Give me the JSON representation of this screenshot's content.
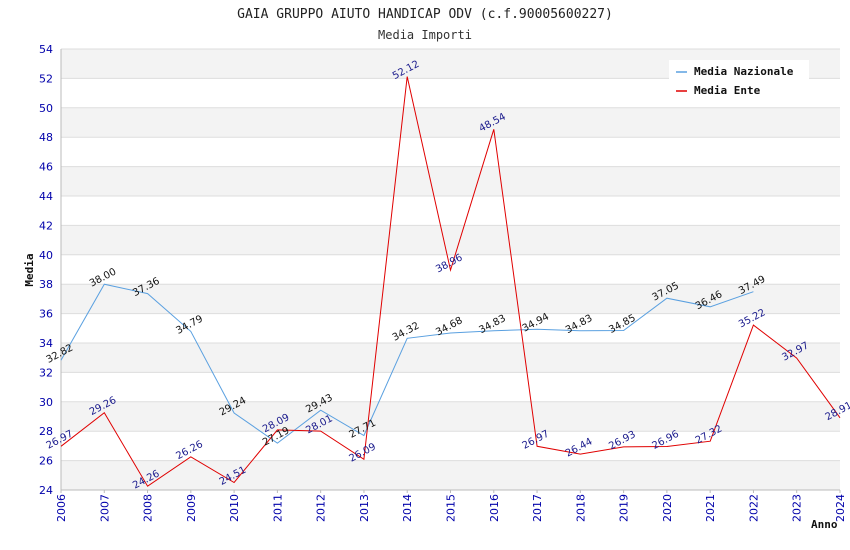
{
  "chart_data": {
    "type": "line",
    "title": "GAIA GRUPPO AIUTO HANDICAP ODV (c.f.90005600227)",
    "subtitle": "Media Importi",
    "xlabel": "Anno",
    "ylabel": "Media",
    "ylim": [
      24,
      54
    ],
    "yticks": [
      24,
      26,
      28,
      30,
      32,
      34,
      36,
      38,
      40,
      42,
      44,
      46,
      48,
      50,
      52,
      54
    ],
    "categories": [
      "2006",
      "2007",
      "2008",
      "2009",
      "2010",
      "2011",
      "2012",
      "2013",
      "2014",
      "2015",
      "2016",
      "2017",
      "2018",
      "2019",
      "2020",
      "2021",
      "2022",
      "2023",
      "2024"
    ],
    "grid": true,
    "legend_position": "top-right",
    "series": [
      {
        "name": "Media Nazionale",
        "color": "#5aa0e0",
        "values": [
          32.82,
          38.0,
          37.36,
          34.79,
          29.24,
          27.19,
          29.43,
          27.71,
          34.32,
          34.68,
          34.83,
          34.94,
          34.83,
          34.85,
          37.05,
          36.46,
          37.49,
          null,
          null
        ],
        "labels": [
          "32.82",
          "38.00",
          "37.36",
          "34.79",
          "29.24",
          "27.19",
          "29.43",
          "27.71",
          "34.32",
          "34.68",
          "34.83",
          "34.94",
          "34.83",
          "34.85",
          "37.05",
          "36.46",
          "37.49",
          "",
          ""
        ]
      },
      {
        "name": "Media Ente",
        "color": "#e00000",
        "values": [
          26.97,
          29.26,
          24.26,
          26.26,
          24.51,
          28.09,
          28.01,
          26.09,
          52.12,
          38.96,
          48.54,
          26.97,
          26.44,
          26.93,
          26.96,
          27.32,
          35.22,
          32.97,
          28.91
        ],
        "labels": [
          "26.97",
          "29.26",
          "24.26",
          "26.26",
          "24.51",
          "28.09",
          "28.01",
          "26.09",
          "52.12",
          "38.96",
          "48.54",
          "26.97",
          "26.44",
          "26.93",
          "26.96",
          "27.32",
          "35.22",
          "32.97",
          "28.91"
        ]
      }
    ]
  }
}
